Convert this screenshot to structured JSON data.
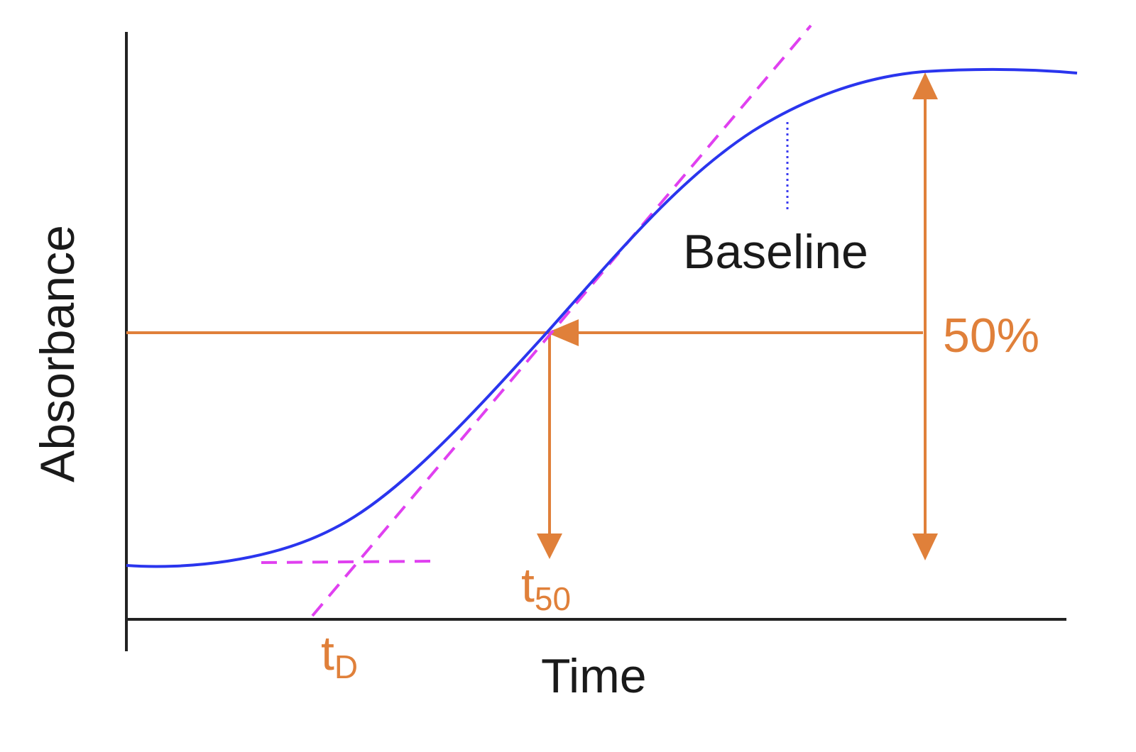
{
  "colors": {
    "curve": "#2a35ee",
    "annotation": "#e0803a",
    "tangent": "#e040f0",
    "axis": "#222222",
    "baseline_marker": "#3a3af0"
  },
  "labels": {
    "y_axis": "Absorbance",
    "x_axis": "Time",
    "baseline": "Baseline",
    "percent": "50%",
    "t50_main": "t",
    "t50_sub": "50",
    "tD_main": "t",
    "tD_sub": "D"
  }
}
